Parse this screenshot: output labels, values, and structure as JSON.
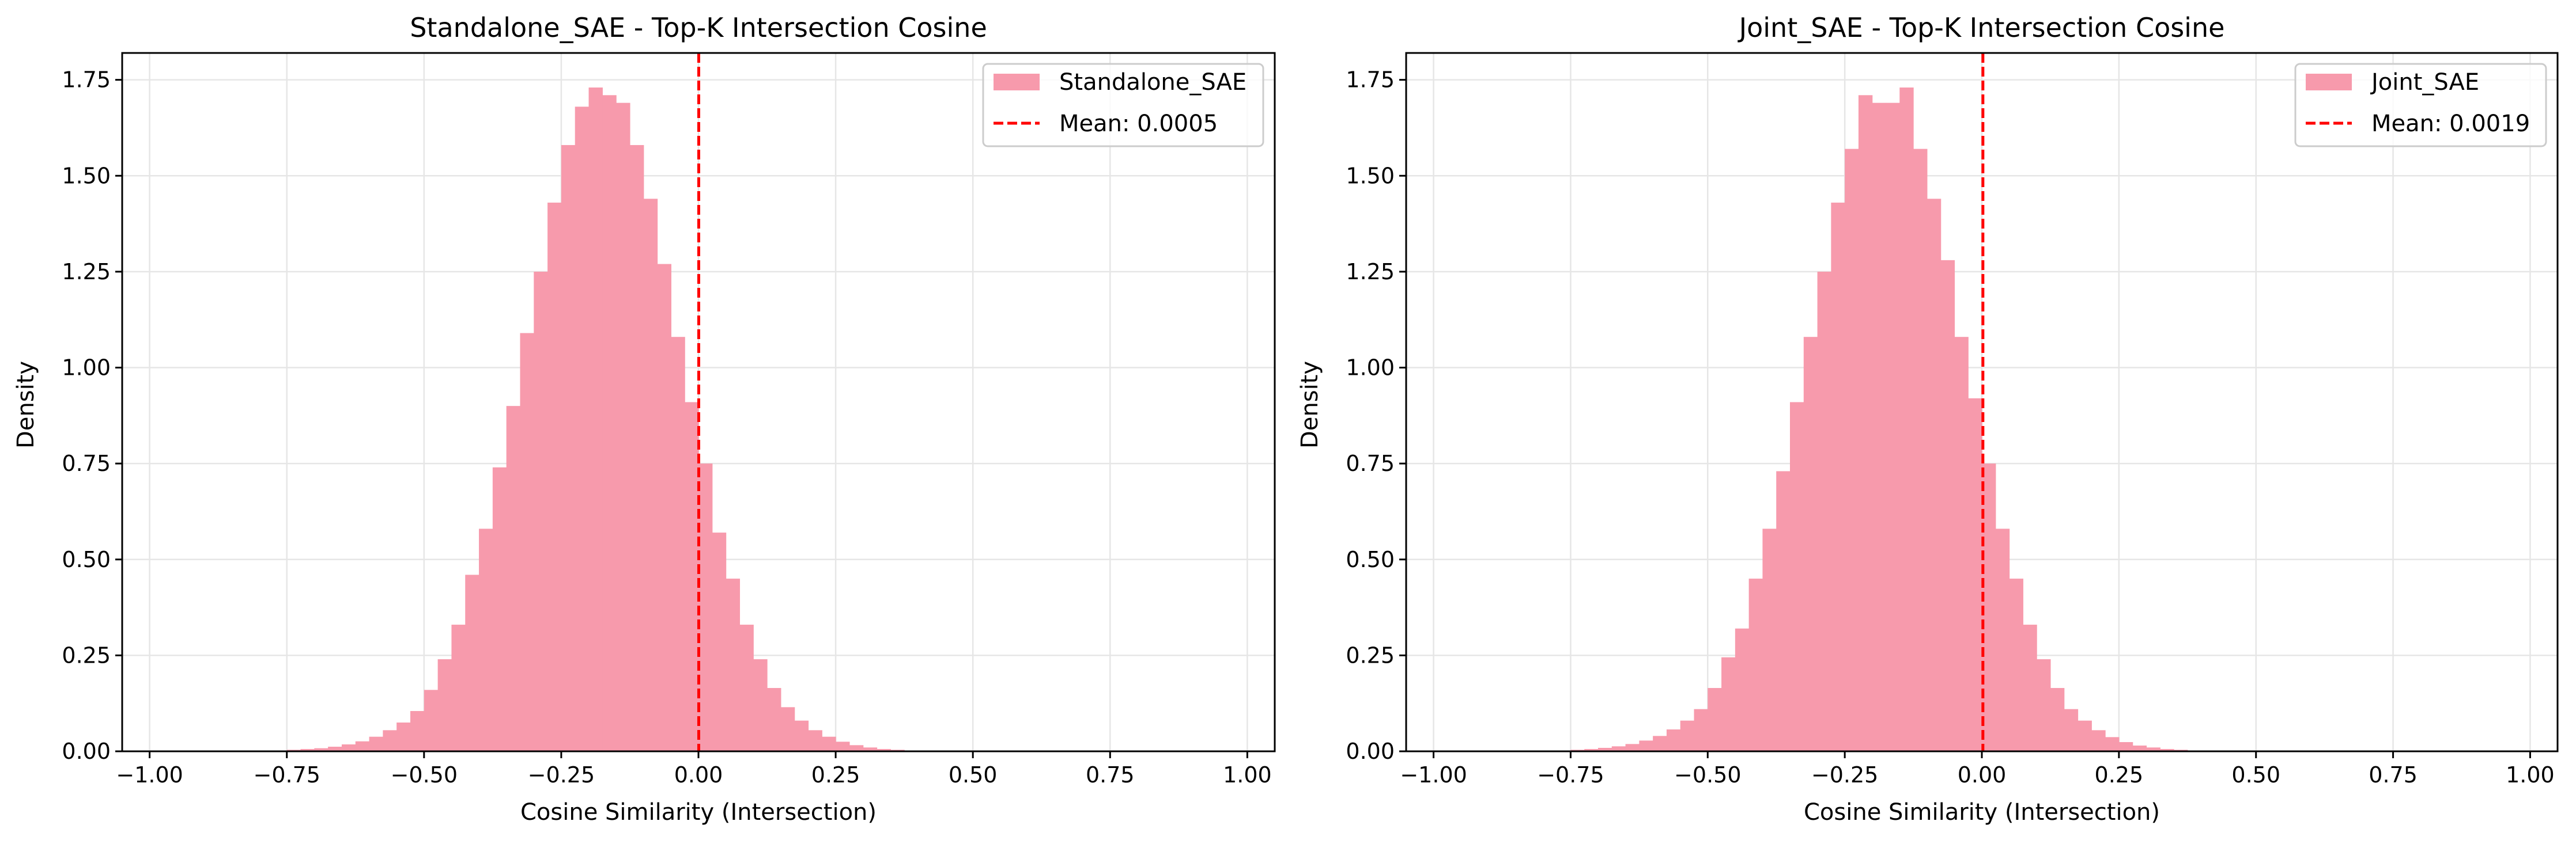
{
  "colors": {
    "bar": "#f79aac",
    "mean_line": "#ff0000",
    "grid": "#e6e6e6",
    "axes": "#000000",
    "background": "#ffffff"
  },
  "chart_data": [
    {
      "type": "histogram",
      "title": "Standalone_SAE - Top-K Intersection Cosine",
      "xlabel": "Cosine Similarity (Intersection)",
      "ylabel": "Density",
      "xlim": [
        -1.05,
        1.05
      ],
      "ylim": [
        0,
        1.82
      ],
      "grid": true,
      "legend_position": "top-right",
      "bin_start": -1.0,
      "bin_width": 0.025,
      "density": [
        0.0,
        0.0,
        0.0,
        0.0,
        0.0,
        0.0,
        0.0,
        0.0,
        0.001,
        0.002,
        0.004,
        0.006,
        0.008,
        0.012,
        0.018,
        0.026,
        0.038,
        0.055,
        0.075,
        0.105,
        0.16,
        0.24,
        0.33,
        0.46,
        0.58,
        0.74,
        0.9,
        1.09,
        1.25,
        1.43,
        1.58,
        1.68,
        1.73,
        1.71,
        1.69,
        1.58,
        1.44,
        1.27,
        1.08,
        0.91,
        0.75,
        0.57,
        0.45,
        0.33,
        0.24,
        0.165,
        0.115,
        0.08,
        0.055,
        0.038,
        0.025,
        0.016,
        0.01,
        0.006,
        0.004,
        0.002,
        0.001,
        0.0,
        0.0,
        0.0,
        0.0,
        0.0,
        0.0,
        0.0,
        0.0,
        0.0,
        0.0,
        0.0,
        0.0,
        0.0,
        0.0,
        0.0,
        0.0,
        0.0,
        0.0,
        0.0,
        0.0,
        0.0,
        0.0,
        0.0
      ],
      "mean": 0.0005,
      "legend": [
        "Standalone_SAE",
        "Mean: 0.0005"
      ],
      "xticks": [
        -1.0,
        -0.75,
        -0.5,
        -0.25,
        0.0,
        0.25,
        0.5,
        0.75,
        1.0
      ],
      "xtick_labels": [
        "−1.00",
        "−0.75",
        "−0.50",
        "−0.25",
        "0.00",
        "0.25",
        "0.50",
        "0.75",
        "1.00"
      ],
      "yticks": [
        0.0,
        0.25,
        0.5,
        0.75,
        1.0,
        1.25,
        1.5,
        1.75
      ],
      "ytick_labels": [
        "0.00",
        "0.25",
        "0.50",
        "0.75",
        "1.00",
        "1.25",
        "1.50",
        "1.75"
      ]
    },
    {
      "type": "histogram",
      "title": "Joint_SAE - Top-K Intersection Cosine",
      "xlabel": "Cosine Similarity (Intersection)",
      "ylabel": "Density",
      "xlim": [
        -1.05,
        1.05
      ],
      "ylim": [
        0,
        1.82
      ],
      "grid": true,
      "legend_position": "top-right",
      "bin_start": -1.0,
      "bin_width": 0.025,
      "density": [
        0.0,
        0.0,
        0.0,
        0.0,
        0.0,
        0.0,
        0.0,
        0.0,
        0.001,
        0.002,
        0.004,
        0.006,
        0.009,
        0.013,
        0.019,
        0.028,
        0.04,
        0.057,
        0.08,
        0.11,
        0.165,
        0.245,
        0.32,
        0.45,
        0.58,
        0.73,
        0.91,
        1.08,
        1.25,
        1.43,
        1.57,
        1.71,
        1.69,
        1.69,
        1.73,
        1.57,
        1.44,
        1.28,
        1.08,
        0.92,
        0.75,
        0.58,
        0.45,
        0.33,
        0.24,
        0.165,
        0.11,
        0.08,
        0.055,
        0.037,
        0.024,
        0.015,
        0.01,
        0.006,
        0.004,
        0.002,
        0.001,
        0.0,
        0.0,
        0.0,
        0.0,
        0.0,
        0.0,
        0.0,
        0.0,
        0.0,
        0.0,
        0.0,
        0.0,
        0.0,
        0.0,
        0.0,
        0.0,
        0.0,
        0.0,
        0.0,
        0.0,
        0.0,
        0.0,
        0.0
      ],
      "mean": 0.0019,
      "legend": [
        "Joint_SAE",
        "Mean: 0.0019"
      ],
      "xticks": [
        -1.0,
        -0.75,
        -0.5,
        -0.25,
        0.0,
        0.25,
        0.5,
        0.75,
        1.0
      ],
      "xtick_labels": [
        "−1.00",
        "−0.75",
        "−0.50",
        "−0.25",
        "0.00",
        "0.25",
        "0.50",
        "0.75",
        "1.00"
      ],
      "yticks": [
        0.0,
        0.25,
        0.5,
        0.75,
        1.0,
        1.25,
        1.5,
        1.75
      ],
      "ytick_labels": [
        "0.00",
        "0.25",
        "0.50",
        "0.75",
        "1.00",
        "1.25",
        "1.50",
        "1.75"
      ]
    }
  ]
}
